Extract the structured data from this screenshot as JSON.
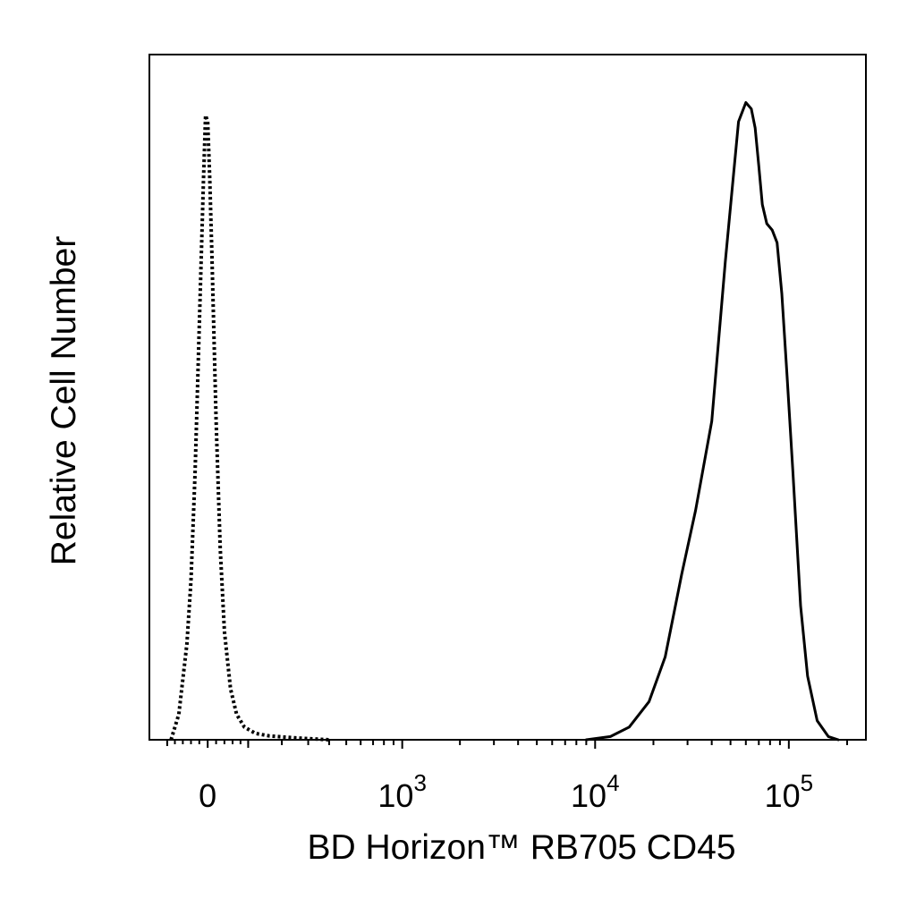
{
  "chart_data": {
    "type": "line",
    "title": "",
    "xlabel": "BD Horizon™ RB705  CD45",
    "ylabel": "Relative Cell Number",
    "x_scale": "biexponential",
    "xlim": [
      -150,
      250000
    ],
    "ylim": [
      0,
      1
    ],
    "grid": false,
    "legend": "none",
    "x_tick_labels": [
      {
        "value": 0,
        "base": "0",
        "exp": ""
      },
      {
        "value": 1000,
        "base": "10",
        "exp": "3"
      },
      {
        "value": 10000,
        "base": "10",
        "exp": "4"
      },
      {
        "value": 100000,
        "base": "10",
        "exp": "5"
      }
    ],
    "series": [
      {
        "style": "dotted",
        "color": "#000000",
        "x": [
          -90,
          -70,
          -50,
          -40,
          -30,
          -20,
          -10,
          -5,
          0,
          5,
          10,
          20,
          30,
          40,
          55,
          70,
          90,
          120,
          160,
          250,
          400
        ],
        "y": [
          0.0,
          0.04,
          0.15,
          0.25,
          0.42,
          0.65,
          0.88,
          0.98,
          0.97,
          0.88,
          0.76,
          0.5,
          0.3,
          0.17,
          0.08,
          0.04,
          0.02,
          0.01,
          0.006,
          0.003,
          0.0
        ]
      },
      {
        "style": "solid",
        "color": "#000000",
        "x": [
          9000,
          12000,
          15000,
          19000,
          23000,
          28000,
          33000,
          40000,
          47000,
          55000,
          60000,
          64000,
          67000,
          70000,
          73000,
          77000,
          82000,
          87000,
          92000,
          98000,
          105000,
          115000,
          125000,
          140000,
          160000,
          180000
        ],
        "y": [
          0.0,
          0.005,
          0.02,
          0.06,
          0.13,
          0.26,
          0.36,
          0.5,
          0.75,
          0.97,
          1.0,
          0.99,
          0.96,
          0.9,
          0.84,
          0.81,
          0.8,
          0.78,
          0.7,
          0.57,
          0.42,
          0.21,
          0.1,
          0.03,
          0.005,
          0.0
        ]
      }
    ]
  }
}
